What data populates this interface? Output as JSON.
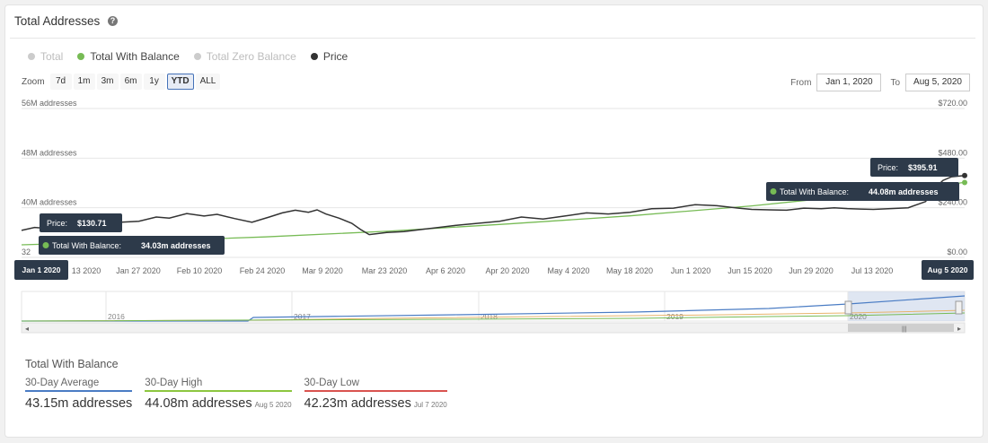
{
  "header": {
    "title": "Total Addresses"
  },
  "legend": [
    {
      "label": "Total",
      "color": "#cccccc",
      "active": false
    },
    {
      "label": "Total With Balance",
      "color": "#77bb55",
      "active": true
    },
    {
      "label": "Total Zero Balance",
      "color": "#cccccc",
      "active": false
    },
    {
      "label": "Price",
      "color": "#333333",
      "active": true
    }
  ],
  "zoom": {
    "label": "Zoom",
    "buttons": [
      "7d",
      "1m",
      "3m",
      "6m",
      "1y",
      "YTD",
      "ALL"
    ],
    "active": "YTD"
  },
  "range": {
    "from_label": "From",
    "from": "Jan 1, 2020",
    "to_label": "To",
    "to": "Aug 5, 2020"
  },
  "chart_data": {
    "type": "line",
    "title": "Total Addresses",
    "x_ticks": [
      "13 2020",
      "Jan 27 2020",
      "Feb 10 2020",
      "Feb 24 2020",
      "Mar 9 2020",
      "Mar 23 2020",
      "Apr 6 2020",
      "Apr 20 2020",
      "May 4 2020",
      "May 18 2020",
      "Jun 1 2020",
      "Jun 15 2020",
      "Jun 29 2020",
      "Jul 13 2020",
      "Jul 2"
    ],
    "y_left_ticks": [
      "56M addresses",
      "48M addresses",
      "40M addresses",
      "32"
    ],
    "y_right_ticks": [
      "$720.00",
      "$480.00",
      "$240.00",
      "$0.00"
    ],
    "y_left_range": [
      32,
      56
    ],
    "y_right_range": [
      0,
      720
    ],
    "x_range": [
      "Jan 1 2020",
      "Aug 5 2020"
    ],
    "series": [
      {
        "name": "Total With Balance",
        "color": "#77bb55",
        "axis": "left",
        "x": [
          0,
          28,
          56,
          84,
          112,
          140,
          168,
          182,
          200,
          217
        ],
        "values": [
          34.03,
          34.6,
          35.3,
          36.2,
          37.4,
          38.7,
          40.3,
          41.3,
          42.6,
          44.08
        ]
      },
      {
        "name": "Price",
        "color": "#333333",
        "axis": "right",
        "x": [
          0,
          3,
          6,
          9,
          13,
          18,
          23,
          27,
          31,
          34,
          38,
          42,
          45,
          49,
          53,
          57,
          60,
          63,
          66,
          68,
          70,
          73,
          76,
          78,
          80,
          84,
          88,
          92,
          96,
          100,
          105,
          110,
          115,
          120,
          125,
          130,
          135,
          140,
          145,
          150,
          155,
          160,
          162,
          165,
          168,
          172,
          176,
          180,
          184,
          187,
          190,
          193,
          196,
          200,
          204,
          208,
          210,
          212,
          214,
          217
        ],
        "values": [
          130.71,
          145,
          140,
          155,
          162,
          168,
          170,
          175,
          195,
          190,
          212,
          200,
          208,
          188,
          170,
          195,
          215,
          228,
          218,
          230,
          210,
          190,
          165,
          135,
          110,
          120,
          125,
          135,
          145,
          155,
          165,
          175,
          195,
          185,
          200,
          215,
          210,
          218,
          235,
          238,
          255,
          250,
          245,
          238,
          232,
          230,
          228,
          238,
          235,
          240,
          236,
          234,
          232,
          236,
          240,
          270,
          330,
          372,
          390,
          395.91
        ]
      }
    ],
    "tooltips": [
      {
        "label": "Price:",
        "value": "$130.71",
        "date": "Jan 1 2020"
      },
      {
        "label": "Total With Balance:",
        "value": "34.03m addresses"
      },
      {
        "label": "Price:",
        "value": "$395.91",
        "date": "Aug 5 2020"
      },
      {
        "label": "Total With Balance:",
        "value": "44.08m addresses"
      }
    ],
    "navigator": {
      "year_labels": [
        "2016",
        "2017",
        "2018",
        "2019",
        "2020"
      ]
    }
  },
  "stats": {
    "title": "Total With Balance",
    "items": [
      {
        "label": "30-Day Average",
        "value": "43.15m addresses",
        "date": "",
        "color": "#4a7cc4"
      },
      {
        "label": "30-Day High",
        "value": "44.08m addresses",
        "date": "Aug 5 2020",
        "color": "#8cc63f"
      },
      {
        "label": "30-Day Low",
        "value": "42.23m addresses",
        "date": "Jul 7 2020",
        "color": "#d9534f"
      }
    ]
  }
}
